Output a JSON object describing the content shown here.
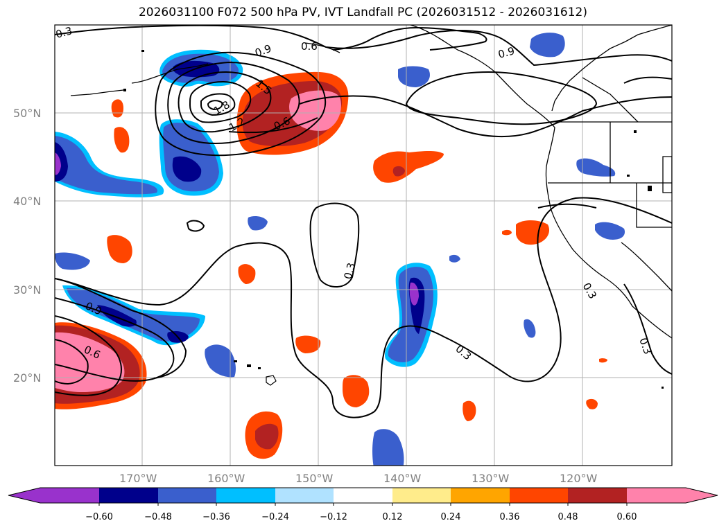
{
  "title": "2026031100 F072 500 hPa PV, IVT Landfall PC (2026031512 - 2026031612)",
  "lat_labels": [
    "50°N",
    "40°N",
    "30°N",
    "20°N"
  ],
  "lon_labels": [
    "170°W",
    "160°W",
    "150°W",
    "140°W",
    "130°W",
    "120°W"
  ],
  "contour_labels": [
    "0.3",
    "0.6",
    "0.9",
    "1.5",
    "1.8",
    "1.2",
    "0.6",
    "0.9",
    "0.3",
    "0.3",
    "0.9",
    "0.6",
    "0.3",
    "0.3"
  ],
  "colorbar": {
    "tick_labels": [
      "−0.60",
      "−0.48",
      "−0.36",
      "−0.24",
      "−0.12",
      "0.12",
      "0.24",
      "0.36",
      "0.48",
      "0.60"
    ],
    "colors": [
      "#9932cc",
      "#00008b",
      "#3a5fcd",
      "#00bfff",
      "#b0e2ff",
      "#ffffff",
      "#ffec8b",
      "#ffa500",
      "#ff4500",
      "#b22222",
      "#ff82ab"
    ]
  },
  "colors": {
    "grid": "#b0b0b0",
    "coast": "#000000",
    "contour": "#000000"
  }
}
